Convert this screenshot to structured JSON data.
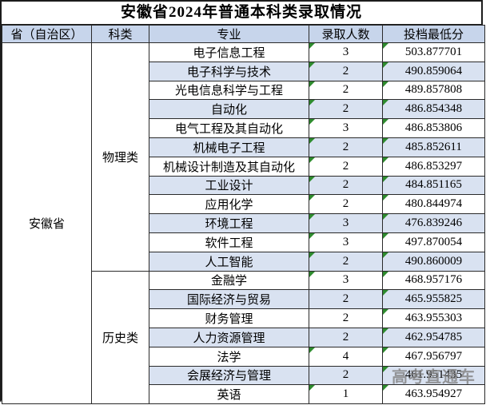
{
  "title": "安徽省2024年普通本科类录取情况",
  "watermark": "高考直通车",
  "columns": [
    "省（自治区）",
    "科类",
    "专业",
    "录取人数",
    "投档最低分"
  ],
  "province": "安徽省",
  "groups": [
    {
      "category": "物理类",
      "rows": [
        {
          "major": "电子信息工程",
          "count": "3",
          "score": "503.877701",
          "qty_flag": true,
          "score_flag": true
        },
        {
          "major": "电子科学与技术",
          "count": "2",
          "score": "490.859064",
          "qty_flag": true,
          "score_flag": true
        },
        {
          "major": "光电信息科学与工程",
          "count": "2",
          "score": "489.857808",
          "qty_flag": true,
          "score_flag": true
        },
        {
          "major": "自动化",
          "count": "2",
          "score": "486.854348",
          "qty_flag": true,
          "score_flag": true
        },
        {
          "major": "电气工程及其自动化",
          "count": "3",
          "score": "486.853806",
          "qty_flag": true,
          "score_flag": true
        },
        {
          "major": "机械电子工程",
          "count": "2",
          "score": "485.852611",
          "qty_flag": true,
          "score_flag": true
        },
        {
          "major": "机械设计制造及其自动化",
          "count": "2",
          "score": "486.853297",
          "qty_flag": true,
          "score_flag": true
        },
        {
          "major": "工业设计",
          "count": "2",
          "score": "484.851165",
          "qty_flag": true,
          "score_flag": true
        },
        {
          "major": "应用化学",
          "count": "2",
          "score": "480.844974",
          "qty_flag": true,
          "score_flag": true
        },
        {
          "major": "环境工程",
          "count": "3",
          "score": "476.839246",
          "qty_flag": true,
          "score_flag": true
        },
        {
          "major": "软件工程",
          "count": "3",
          "score": "497.870054",
          "qty_flag": true,
          "score_flag": true
        },
        {
          "major": "人工智能",
          "count": "2",
          "score": "490.860009",
          "qty_flag": true,
          "score_flag": true
        }
      ]
    },
    {
      "category": "历史类",
      "rows": [
        {
          "major": "金融学",
          "count": "3",
          "score": "468.957176",
          "qty_flag": true,
          "score_flag": true
        },
        {
          "major": "国际经济与贸易",
          "count": "2",
          "score": "465.955825",
          "qty_flag": false,
          "score_flag": true
        },
        {
          "major": "财务管理",
          "count": "2",
          "score": "463.955303",
          "qty_flag": false,
          "score_flag": true
        },
        {
          "major": "人力资源管理",
          "count": "2",
          "score": "462.954785",
          "qty_flag": false,
          "score_flag": true
        },
        {
          "major": "法学",
          "count": "4",
          "score": "467.956797",
          "qty_flag": true,
          "score_flag": true
        },
        {
          "major": "会展经济与管理",
          "count": "2",
          "score": "461.951435",
          "qty_flag": false,
          "score_flag": true,
          "score_obscured_by_watermark": true
        },
        {
          "major": "英语",
          "count": "1",
          "score": "463.954927",
          "qty_flag": true,
          "score_flag": true
        }
      ]
    }
  ],
  "colors": {
    "header_bg": "#c7d5eb",
    "alt_row_bg": "#d9e2f1",
    "flag_green": "#2e8b2e",
    "watermark_gray": "#808080",
    "border": "#2a2a2a"
  },
  "chart_data": {
    "type": "table",
    "title": "安徽省2024年普通本科类录取情况",
    "columns": [
      "省（自治区）",
      "科类",
      "专业",
      "录取人数",
      "投档最低分"
    ],
    "rows": [
      [
        "安徽省",
        "物理类",
        "电子信息工程",
        3,
        503.877701
      ],
      [
        "安徽省",
        "物理类",
        "电子科学与技术",
        2,
        490.859064
      ],
      [
        "安徽省",
        "物理类",
        "光电信息科学与工程",
        2,
        489.857808
      ],
      [
        "安徽省",
        "物理类",
        "自动化",
        2,
        486.854348
      ],
      [
        "安徽省",
        "物理类",
        "电气工程及其自动化",
        3,
        486.853806
      ],
      [
        "安徽省",
        "物理类",
        "机械电子工程",
        2,
        485.852611
      ],
      [
        "安徽省",
        "物理类",
        "机械设计制造及其自动化",
        2,
        486.853297
      ],
      [
        "安徽省",
        "物理类",
        "工业设计",
        2,
        484.851165
      ],
      [
        "安徽省",
        "物理类",
        "应用化学",
        2,
        480.844974
      ],
      [
        "安徽省",
        "物理类",
        "环境工程",
        3,
        476.839246
      ],
      [
        "安徽省",
        "物理类",
        "软件工程",
        3,
        497.870054
      ],
      [
        "安徽省",
        "物理类",
        "人工智能",
        2,
        490.860009
      ],
      [
        "安徽省",
        "历史类",
        "金融学",
        3,
        468.957176
      ],
      [
        "安徽省",
        "历史类",
        "国际经济与贸易",
        2,
        465.955825
      ],
      [
        "安徽省",
        "历史类",
        "财务管理",
        2,
        463.955303
      ],
      [
        "安徽省",
        "历史类",
        "人力资源管理",
        2,
        462.954785
      ],
      [
        "安徽省",
        "历史类",
        "法学",
        4,
        467.956797
      ],
      [
        "安徽省",
        "历史类",
        "会展经济与管理",
        2,
        "obscured by watermark 高考直通车 (46?.95??35)"
      ],
      [
        "安徽省",
        "历史类",
        "英语",
        1,
        463.954927
      ]
    ],
    "legend_position": "none",
    "grid": true
  }
}
